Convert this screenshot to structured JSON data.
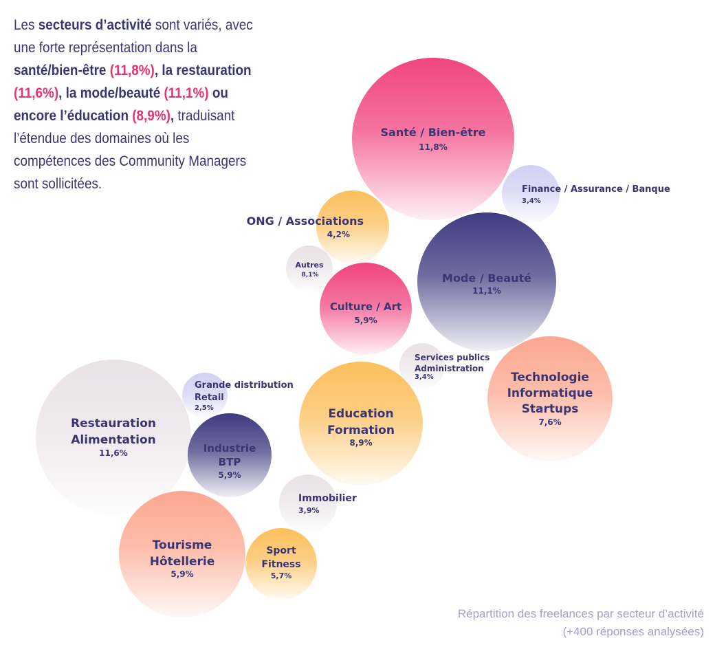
{
  "intro": {
    "p1": "Les ",
    "b1": "secteurs d’activité",
    "p2": " sont variés, avec une forte représentation dans la ",
    "b2": "santé/bien-être ",
    "v1": "(11,8%)",
    "b3": ", la restauration ",
    "v2": "(11,6%)",
    "b4": ", la mode/beauté ",
    "v3": "(11,1%)",
    "b5": " ou encore l’éducation ",
    "v4": "(8,9%)",
    "b6": ",",
    "p3": " traduisant l’étendue des domaines où les compétences des Community Managers sont sollicitées."
  },
  "caption": {
    "line1": "Répartition des freelances par secteur d’activité",
    "line2": "(+400 réponses analysées)"
  },
  "colors": {
    "pink": "#f0457f",
    "orange": "#fbbf5c",
    "navy": "#3f3b80",
    "salmon": "#fba78f",
    "lavender": "#d2d0f2",
    "gray": "#e9e2e6",
    "text": "#3a3572"
  },
  "chart_data": {
    "type": "bubble",
    "value_unit": "%",
    "series": [
      {
        "name": "Santé / Bien-être",
        "label_lines": [
          "Santé / Bien-être"
        ],
        "value": 11.8,
        "value_label": "11,8%",
        "color": "pink"
      },
      {
        "name": "Finance / Assurance / Banque",
        "label_lines": [
          "Finance / Assurance / Banque"
        ],
        "value": 3.4,
        "value_label": "3,4%",
        "color": "lavender"
      },
      {
        "name": "ONG / Associations",
        "label_lines": [
          "ONG / Associations"
        ],
        "value": 4.2,
        "value_label": "4,2%",
        "color": "orange"
      },
      {
        "name": "Autres",
        "label_lines": [
          "Autres"
        ],
        "value": 8.1,
        "value_label": "8,1%",
        "color": "gray"
      },
      {
        "name": "Mode / Beauté",
        "label_lines": [
          "Mode / Beauté"
        ],
        "value": 11.1,
        "value_label": "11,1%",
        "color": "navy"
      },
      {
        "name": "Culture / Art",
        "label_lines": [
          "Culture / Art"
        ],
        "value": 5.9,
        "value_label": "5,9%",
        "color": "pink"
      },
      {
        "name": "Services publics Administration",
        "label_lines": [
          "Services publics",
          "Administration"
        ],
        "value": 3.4,
        "value_label": "3,4%",
        "color": "gray"
      },
      {
        "name": "Technologie Informatique Startups",
        "label_lines": [
          "Technologie",
          "Informatique",
          "Startups"
        ],
        "value": 7.6,
        "value_label": "7,6%",
        "color": "salmon"
      },
      {
        "name": "Grande distribution Retail",
        "label_lines": [
          "Grande distribution",
          "Retail"
        ],
        "value": 2.5,
        "value_label": "2,5%",
        "color": "lavender"
      },
      {
        "name": "Education Formation",
        "label_lines": [
          "Education",
          "Formation"
        ],
        "value": 8.9,
        "value_label": "8,9%",
        "color": "orange"
      },
      {
        "name": "Restauration Alimentation",
        "label_lines": [
          "Restauration",
          "Alimentation"
        ],
        "value": 11.6,
        "value_label": "11,6%",
        "color": "gray"
      },
      {
        "name": "Industrie BTP",
        "label_lines": [
          "Industrie",
          "BTP"
        ],
        "value": 5.9,
        "value_label": "5,9%",
        "color": "navy"
      },
      {
        "name": "Immobilier",
        "label_lines": [
          "Immobilier"
        ],
        "value": 3.9,
        "value_label": "3,9%",
        "color": "gray"
      },
      {
        "name": "Tourisme Hôtellerie",
        "label_lines": [
          "Tourisme",
          "Hôtellerie"
        ],
        "value": 5.9,
        "value_label": "5,9%",
        "color": "salmon"
      },
      {
        "name": "Sport Fitness",
        "label_lines": [
          "Sport",
          "Fitness"
        ],
        "value": 5.7,
        "value_label": "5,7%",
        "color": "orange"
      }
    ]
  }
}
